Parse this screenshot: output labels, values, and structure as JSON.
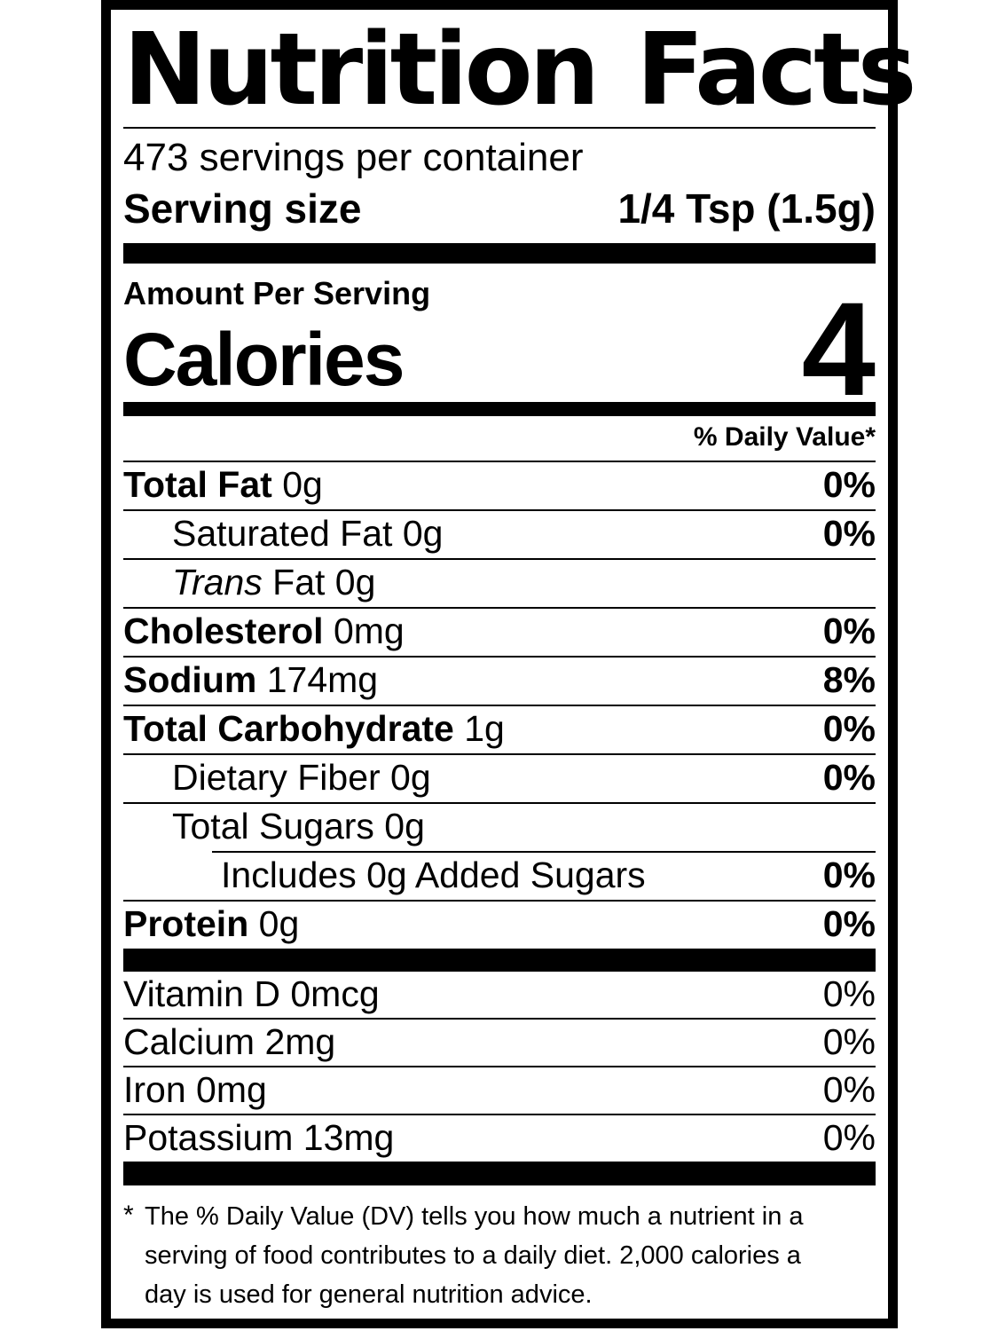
{
  "label": {
    "title": "Nutrition Facts",
    "servings_per_container": "473 servings per container",
    "serving_size": {
      "label": "Serving size",
      "value": "1/4 Tsp (1.5g)"
    },
    "amount_per_serving": "Amount Per Serving",
    "calories": {
      "label": "Calories",
      "value": "4"
    },
    "daily_value_header": "% Daily Value*",
    "nutrients": [
      {
        "bold": "Total Fat",
        "text": " 0g",
        "pct": "0%"
      },
      {
        "bold": "",
        "text": "Saturated Fat 0g",
        "pct": "0%"
      },
      {
        "italic": "Trans",
        "text": " Fat 0g",
        "pct": ""
      },
      {
        "bold": "Cholesterol",
        "text": " 0mg",
        "pct": "0%"
      },
      {
        "bold": "Sodium",
        "text": " 174mg",
        "pct": "8%"
      },
      {
        "bold": "Total Carbohydrate",
        "text": " 1g",
        "pct": "0%"
      },
      {
        "bold": "",
        "text": "Dietary Fiber 0g",
        "pct": "0%"
      },
      {
        "bold": "",
        "text": "Total Sugars 0g",
        "pct": ""
      },
      {
        "bold": "",
        "text": "Includes 0g Added Sugars",
        "pct": "0%"
      },
      {
        "bold": "Protein",
        "text": " 0g",
        "pct": "0%"
      }
    ],
    "vitamins": [
      {
        "text": "Vitamin D 0mcg",
        "pct": "0%"
      },
      {
        "text": "Calcium 2mg",
        "pct": "0%"
      },
      {
        "text": "Iron 0mg",
        "pct": "0%"
      },
      {
        "text": "Potassium 13mg",
        "pct": "0%"
      }
    ],
    "footnote": {
      "marker": "*",
      "lines": [
        "The % Daily Value (DV) tells you how much a nutrient in a",
        "serving of food contributes to a daily diet. 2,000 calories a",
        "day is used for general nutrition advice."
      ]
    },
    "colors": {
      "ink": "#000000",
      "paper": "#ffffff"
    }
  }
}
